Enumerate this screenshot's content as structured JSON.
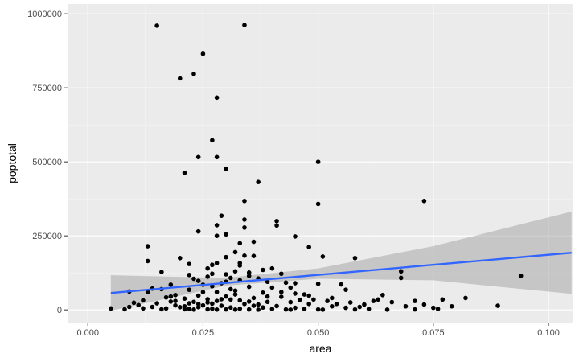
{
  "chart_data": {
    "type": "scatter",
    "xlabel": "area",
    "ylabel": "poptotal",
    "xlim": [
      -0.0044,
      0.1054
    ],
    "ylim": [
      -43000,
      1033000
    ],
    "x_ticks": [
      0.0,
      0.025,
      0.05,
      0.075,
      0.1
    ],
    "x_tick_labels": [
      "0.000",
      "0.025",
      "0.050",
      "0.075",
      "0.100"
    ],
    "y_ticks": [
      0,
      250000,
      500000,
      750000,
      1000000
    ],
    "y_tick_labels": [
      "0",
      "250000",
      "500000",
      "750000",
      "1000000"
    ],
    "grid": true,
    "colors": {
      "panel": "#ebebeb",
      "grid_major": "#ffffff",
      "points": "#000000",
      "fit_line": "#3366ff",
      "confidence_band": "#999999"
    },
    "points": [
      [
        0.015,
        960000
      ],
      [
        0.034,
        962000
      ],
      [
        0.025,
        865000
      ],
      [
        0.023,
        797000
      ],
      [
        0.02,
        782000
      ],
      [
        0.028,
        717000
      ],
      [
        0.027,
        573000
      ],
      [
        0.024,
        516000
      ],
      [
        0.028,
        516000
      ],
      [
        0.05,
        500000
      ],
      [
        0.03,
        477000
      ],
      [
        0.021,
        463000
      ],
      [
        0.037,
        432000
      ],
      [
        0.034,
        368000
      ],
      [
        0.073,
        368000
      ],
      [
        0.05,
        358000
      ],
      [
        0.029,
        318000
      ],
      [
        0.034,
        305000
      ],
      [
        0.041,
        300000
      ],
      [
        0.041,
        285000
      ],
      [
        0.028,
        286000
      ],
      [
        0.034,
        278000
      ],
      [
        0.024,
        265000
      ],
      [
        0.03,
        255000
      ],
      [
        0.028,
        250000
      ],
      [
        0.045,
        248000
      ],
      [
        0.036,
        230000
      ],
      [
        0.033,
        225000
      ],
      [
        0.013,
        215000
      ],
      [
        0.048,
        212000
      ],
      [
        0.032,
        195000
      ],
      [
        0.034,
        183000
      ],
      [
        0.036,
        182000
      ],
      [
        0.051,
        180000
      ],
      [
        0.03,
        178000
      ],
      [
        0.02,
        175000
      ],
      [
        0.058,
        175000
      ],
      [
        0.013,
        165000
      ],
      [
        0.033,
        158000
      ],
      [
        0.028,
        158000
      ],
      [
        0.022,
        155000
      ],
      [
        0.027,
        152000
      ],
      [
        0.04,
        140000
      ],
      [
        0.038,
        135000
      ],
      [
        0.032,
        130000
      ],
      [
        0.068,
        130000
      ],
      [
        0.016,
        128000
      ],
      [
        0.035,
        126000
      ],
      [
        0.042,
        122000
      ],
      [
        0.03,
        120000
      ],
      [
        0.022,
        118000
      ],
      [
        0.094,
        115000
      ],
      [
        0.026,
        112000
      ],
      [
        0.068,
        108000
      ],
      [
        0.037,
        106000
      ],
      [
        0.033,
        100000
      ],
      [
        0.024,
        98000
      ],
      [
        0.03,
        95000
      ],
      [
        0.043,
        92000
      ],
      [
        0.045,
        90000
      ],
      [
        0.05,
        88000
      ],
      [
        0.055,
        86000
      ],
      [
        0.018,
        85000
      ],
      [
        0.027,
        80000
      ],
      [
        0.035,
        78000
      ],
      [
        0.04,
        75000
      ],
      [
        0.014,
        72000
      ],
      [
        0.016,
        70000
      ],
      [
        0.022,
        68000
      ],
      [
        0.056,
        68000
      ],
      [
        0.032,
        65000
      ],
      [
        0.009,
        62000
      ],
      [
        0.028,
        60000
      ],
      [
        0.038,
        58000
      ],
      [
        0.045,
        55000
      ],
      [
        0.047,
        52000
      ],
      [
        0.019,
        50000
      ],
      [
        0.024,
        48000
      ],
      [
        0.03,
        45000
      ],
      [
        0.042,
        44000
      ],
      [
        0.064,
        50000
      ],
      [
        0.017,
        42000
      ],
      [
        0.036,
        40000
      ],
      [
        0.053,
        40000
      ],
      [
        0.082,
        40000
      ],
      [
        0.021,
        38000
      ],
      [
        0.026,
        36000
      ],
      [
        0.031,
        35000
      ],
      [
        0.046,
        34000
      ],
      [
        0.077,
        35000
      ],
      [
        0.012,
        32000
      ],
      [
        0.033,
        32000
      ],
      [
        0.052,
        30000
      ],
      [
        0.062,
        30000
      ],
      [
        0.071,
        30000
      ],
      [
        0.018,
        28000
      ],
      [
        0.023,
        27000
      ],
      [
        0.039,
        27000
      ],
      [
        0.044,
        26000
      ],
      [
        0.057,
        25000
      ],
      [
        0.066,
        26000
      ],
      [
        0.01,
        24000
      ],
      [
        0.015,
        22000
      ],
      [
        0.022,
        22000
      ],
      [
        0.027,
        21000
      ],
      [
        0.034,
        20000
      ],
      [
        0.048,
        20000
      ],
      [
        0.06,
        18000
      ],
      [
        0.073,
        18000
      ],
      [
        0.011,
        16000
      ],
      [
        0.019,
        15000
      ],
      [
        0.025,
        15000
      ],
      [
        0.029,
        14000
      ],
      [
        0.036,
        14000
      ],
      [
        0.041,
        13000
      ],
      [
        0.053,
        12000
      ],
      [
        0.069,
        12000
      ],
      [
        0.079,
        12000
      ],
      [
        0.089,
        14000
      ],
      [
        0.009,
        10000
      ],
      [
        0.014,
        10000
      ],
      [
        0.02,
        9000
      ],
      [
        0.024,
        9000
      ],
      [
        0.031,
        8000
      ],
      [
        0.038,
        8000
      ],
      [
        0.045,
        7000
      ],
      [
        0.056,
        7000
      ],
      [
        0.075,
        7000
      ],
      [
        0.005,
        5000
      ],
      [
        0.012,
        5000
      ],
      [
        0.017,
        5000
      ],
      [
        0.022,
        4000
      ],
      [
        0.027,
        4000
      ],
      [
        0.033,
        4000
      ],
      [
        0.04,
        3000
      ],
      [
        0.047,
        3000
      ],
      [
        0.061,
        3000
      ],
      [
        0.076,
        3000
      ],
      [
        0.008,
        2000
      ],
      [
        0.016,
        2000
      ],
      [
        0.021,
        2000
      ],
      [
        0.026,
        2000
      ],
      [
        0.03,
        1500
      ],
      [
        0.035,
        1500
      ],
      [
        0.043,
        1500
      ],
      [
        0.05,
        1500
      ],
      [
        0.058,
        1500
      ],
      [
        0.071,
        1500
      ],
      [
        0.023,
        1000
      ],
      [
        0.028,
        1000
      ],
      [
        0.032,
        1000
      ],
      [
        0.037,
        800
      ],
      [
        0.044,
        800
      ],
      [
        0.051,
        800
      ],
      [
        0.065,
        800
      ],
      [
        0.019,
        30000
      ],
      [
        0.028,
        30000
      ],
      [
        0.035,
        28000
      ],
      [
        0.039,
        45000
      ],
      [
        0.042,
        60000
      ],
      [
        0.048,
        48000
      ],
      [
        0.025,
        60000
      ],
      [
        0.031,
        70000
      ],
      [
        0.026,
        25000
      ],
      [
        0.029,
        36000
      ],
      [
        0.024,
        20000
      ],
      [
        0.032,
        52000
      ],
      [
        0.037,
        18000
      ],
      [
        0.021,
        12000
      ],
      [
        0.049,
        35000
      ],
      [
        0.054,
        20000
      ],
      [
        0.059,
        10000
      ],
      [
        0.063,
        35000
      ],
      [
        0.018,
        45000
      ],
      [
        0.013,
        60000
      ],
      [
        0.023,
        105000
      ],
      [
        0.026,
        140000
      ],
      [
        0.029,
        90000
      ],
      [
        0.035,
        115000
      ],
      [
        0.039,
        95000
      ],
      [
        0.033,
        150000
      ],
      [
        0.027,
        122000
      ],
      [
        0.031,
        108000
      ],
      [
        0.044,
        75000
      ],
      [
        0.025,
        85000
      ]
    ],
    "fit_line": {
      "x": [
        0.005,
        0.105
      ],
      "y": [
        57000,
        193000
      ]
    },
    "confidence_band": {
      "x": [
        0.005,
        0.03,
        0.05,
        0.075,
        0.105
      ],
      "upper": [
        117000,
        108000,
        140000,
        215000,
        332000
      ],
      "lower": [
        -3000,
        82000,
        105000,
        100000,
        54000
      ]
    }
  }
}
